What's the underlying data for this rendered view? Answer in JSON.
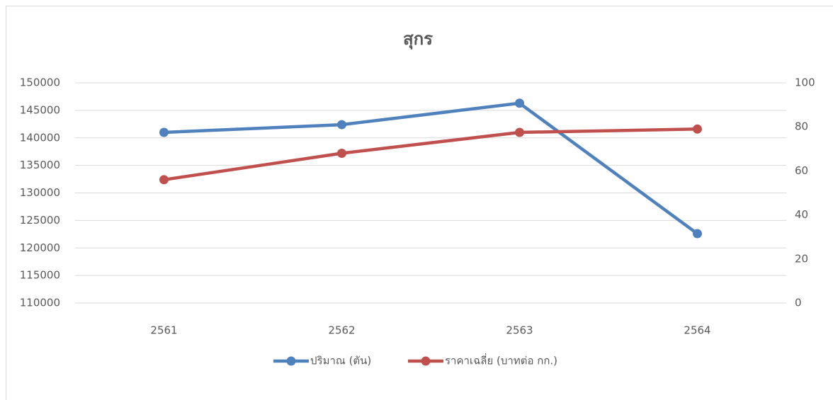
{
  "chart_data": {
    "type": "line",
    "title": "สุกร",
    "categories": [
      "2561",
      "2562",
      "2563",
      "2564"
    ],
    "series": [
      {
        "name": "ปริมาณ (ตัน)",
        "color": "#4f81bd",
        "values": [
          141000,
          142400,
          146300,
          122600
        ]
      },
      {
        "name": "ราคาเฉลี่ย (บาทต่อ กก.)",
        "color": "#c0504d",
        "axis": "y2",
        "values": [
          56,
          68,
          77.5,
          79
        ]
      }
    ],
    "ylim": [
      110000,
      150000
    ],
    "yticks": [
      110000,
      115000,
      120000,
      125000,
      130000,
      135000,
      140000,
      145000,
      150000
    ],
    "y2lim": [
      0,
      100
    ],
    "y2ticks": [
      0,
      20,
      40,
      60,
      80,
      100
    ],
    "grid": true,
    "legend": "bottom"
  }
}
